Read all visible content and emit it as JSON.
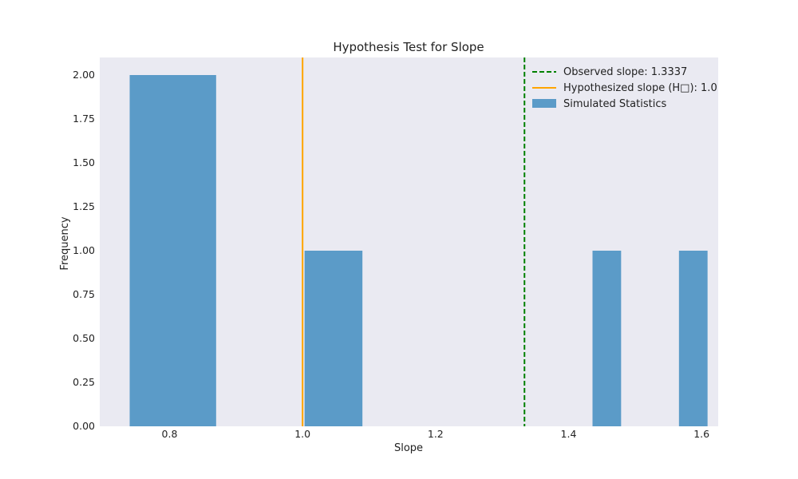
{
  "chart_data": {
    "type": "bar",
    "title": "Hypothesis Test for Slope",
    "xlabel": "Slope",
    "ylabel": "Frequency",
    "xlim": [
      0.695,
      1.625
    ],
    "ylim": [
      0.0,
      2.1
    ],
    "x_ticks": [
      0.8,
      1.0,
      1.2,
      1.4,
      1.6
    ],
    "x_tick_labels": [
      "0.8",
      "1.0",
      "1.2",
      "1.4",
      "1.6"
    ],
    "y_ticks": [
      0.0,
      0.25,
      0.5,
      0.75,
      1.0,
      1.25,
      1.5,
      1.75,
      2.0
    ],
    "y_tick_labels": [
      "0.00",
      "0.25",
      "0.50",
      "0.75",
      "1.00",
      "1.25",
      "1.50",
      "1.75",
      "2.00"
    ],
    "grid": false,
    "histogram": {
      "name": "Simulated Statistics",
      "color": "#5b9bc8",
      "bins": [
        {
          "x0": 0.74,
          "x1": 0.87,
          "value": 2
        },
        {
          "x0": 1.003,
          "x1": 1.09,
          "value": 1
        },
        {
          "x0": 1.436,
          "x1": 1.479,
          "value": 1
        },
        {
          "x0": 1.566,
          "x1": 1.609,
          "value": 1
        }
      ]
    },
    "reference_lines": [
      {
        "name": "Observed slope: 1.3337",
        "x": 1.3337,
        "color": "#008000",
        "style": "dashed"
      },
      {
        "name": "Hypothesized slope (H□): 1.0",
        "x": 1.0,
        "color": "#ffa500",
        "style": "solid"
      }
    ],
    "legend": {
      "placement": "top-right",
      "entries": [
        "Observed slope: 1.3337",
        "Hypothesized slope (H□): 1.0",
        "Simulated Statistics"
      ]
    },
    "background": "#eaeaf2"
  }
}
